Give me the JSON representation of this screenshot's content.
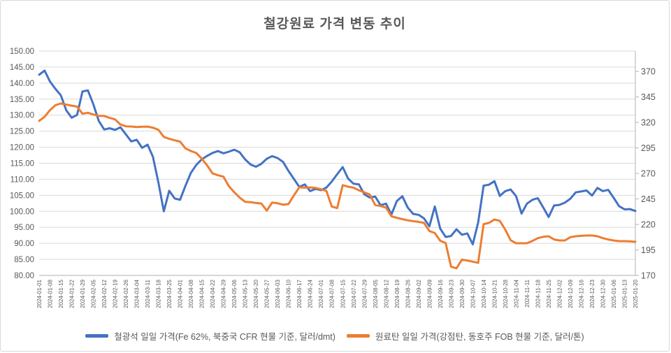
{
  "title": "철강원료 가격 변동 추이",
  "legend": [
    {
      "label": "철광석 일일 가격(Fe 62%, 북중국 CFR 현물 기준, 달러/dmt)",
      "color": "#4472C4"
    },
    {
      "label": "원료탄 일일 가격(강점탄, 동호주 FOB 현물 기준, 달러/톤)",
      "color": "#ED7D31"
    }
  ],
  "colors": {
    "series_iron_ore": "#4472C4",
    "series_coking_coal": "#ED7D31",
    "gridline": "#D9D9D9",
    "axis_line": "#BFBFBF",
    "axis_text": "#595959",
    "title_text": "#595959"
  },
  "chart_data": {
    "type": "line",
    "title": "철강원료 가격 변동 추이",
    "grid": true,
    "legend_position": "bottom",
    "left_axis": {
      "min": 80,
      "max": 150,
      "tick_step": 5,
      "tick_labels": [
        "150.00",
        "145.00",
        "140.00",
        "135.00",
        "130.00",
        "125.00",
        "120.00",
        "115.00",
        "110.00",
        "105.00",
        "100.00",
        "95.00",
        "90.00",
        "85.00",
        "80.00"
      ]
    },
    "right_axis": {
      "min": 170,
      "plot_top_value": 390,
      "tick_step": 25,
      "tick_labels": [
        "370",
        "345",
        "320",
        "295",
        "270",
        "245",
        "220",
        "195",
        "170"
      ]
    },
    "x_labels": [
      "2024-01-01",
      "2024-01-08",
      "2024-01-15",
      "2024-01-22",
      "2024-01-29",
      "2024-02-05",
      "2024-02-12",
      "2024-02-19",
      "2024-02-26",
      "2024-03-04",
      "2024-03-11",
      "2024-03-18",
      "2024-03-25",
      "2024-04-01",
      "2024-04-08",
      "2024-04-15",
      "2024-04-22",
      "2024-04-29",
      "2024-05-06",
      "2024-05-13",
      "2024-05-20",
      "2024-05-27",
      "2024-06-03",
      "2024-06-10",
      "2024-06-17",
      "2024-06-24",
      "2024-07-01",
      "2024-07-08",
      "2024-07-15",
      "2024-07-22",
      "2024-07-29",
      "2024-08-05",
      "2024-08-12",
      "2024-08-19",
      "2024-08-26",
      "2024-09-02",
      "2024-09-09",
      "2024-09-16",
      "2024-09-23",
      "2024-09-30",
      "2024-10-07",
      "2024-10-14",
      "2024-10-21",
      "2024-10-28",
      "2024-11-04",
      "2024-11-11",
      "2024-11-18",
      "2024-11-25",
      "2024-12-02",
      "2024-12-09",
      "2024-12-16",
      "2024-12-23",
      "2024-12-30",
      "2025-01-06",
      "2025-01-13",
      "2025-01-20"
    ],
    "points_per_label_interval": 2,
    "series": [
      {
        "name": "철광석 일일 가격(Fe 62%, 북중국 CFR 현물 기준, 달러/dmt)",
        "axis": "left",
        "color": "#4472C4",
        "values": [
          142.6,
          143.9,
          140.5,
          138.2,
          136.2,
          131.5,
          129.2,
          130.1,
          137.4,
          137.7,
          133.4,
          128.2,
          125.5,
          125.9,
          125.4,
          126.2,
          124.0,
          121.8,
          122.3,
          119.8,
          120.8,
          117.0,
          109.0,
          100.0,
          106.4,
          104.0,
          103.6,
          108.0,
          112.0,
          114.5,
          116.2,
          117.3,
          118.2,
          118.8,
          118.1,
          118.6,
          119.2,
          118.4,
          116.2,
          114.6,
          113.9,
          114.8,
          116.4,
          117.2,
          116.6,
          115.4,
          112.6,
          110.1,
          107.6,
          108.4,
          106.3,
          107.0,
          106.6,
          107.4,
          109.3,
          111.6,
          113.8,
          110.2,
          108.6,
          108.4,
          105.3,
          104.3,
          104.6,
          101.9,
          102.4,
          99.0,
          103.2,
          104.7,
          101.2,
          99.2,
          98.9,
          97.8,
          95.3,
          101.5,
          94.6,
          92.0,
          92.3,
          94.4,
          92.7,
          93.1,
          89.7,
          96.5,
          108.0,
          108.3,
          109.4,
          104.8,
          106.3,
          106.8,
          104.7,
          99.3,
          102.4,
          103.6,
          104.1,
          101.2,
          98.2,
          101.8,
          102.0,
          102.7,
          103.9,
          105.9,
          106.2,
          106.5,
          104.9,
          107.3,
          106.3,
          106.7,
          104.2,
          101.6,
          100.6,
          100.7,
          100.1
        ]
      },
      {
        "name": "원료탄 일일 가격(강점탄, 동호주 FOB 현물 기준, 달러/톤)",
        "axis": "right",
        "color": "#ED7D31",
        "values": [
          321.5,
          325.5,
          332.0,
          336.9,
          338.6,
          337.5,
          336.5,
          335.5,
          328.5,
          329.5,
          327.8,
          326.5,
          326.3,
          324.5,
          323.0,
          318.0,
          316.2,
          316.0,
          315.5,
          315.8,
          315.9,
          314.8,
          312.8,
          305.8,
          303.9,
          302.5,
          301.2,
          294.5,
          292.0,
          290.0,
          284.5,
          277.8,
          270.0,
          268.2,
          266.8,
          257.5,
          251.5,
          246.3,
          242.2,
          241.8,
          241.0,
          240.5,
          233.5,
          241.5,
          240.8,
          239.3,
          240.0,
          248.5,
          256.4,
          256.0,
          256.3,
          255.8,
          254.5,
          252.8,
          237.5,
          236.0,
          258.5,
          257.0,
          256.0,
          253.5,
          251.5,
          249.3,
          239.0,
          238.0,
          236.5,
          228.0,
          226.5,
          225.2,
          224.0,
          223.2,
          222.5,
          221.5,
          213.5,
          211.5,
          204.0,
          201.8,
          178.5,
          177.0,
          185.5,
          184.5,
          183.5,
          182.3,
          220.3,
          221.5,
          224.8,
          223.5,
          214.8,
          204.5,
          201.5,
          201.5,
          201.5,
          203.8,
          206.5,
          207.8,
          208.4,
          205.2,
          204.3,
          204.3,
          207.5,
          208.4,
          208.8,
          209.1,
          209.1,
          208.4,
          206.5,
          205.2,
          204.3,
          203.6,
          203.6,
          203.4,
          203.0
        ]
      }
    ]
  }
}
